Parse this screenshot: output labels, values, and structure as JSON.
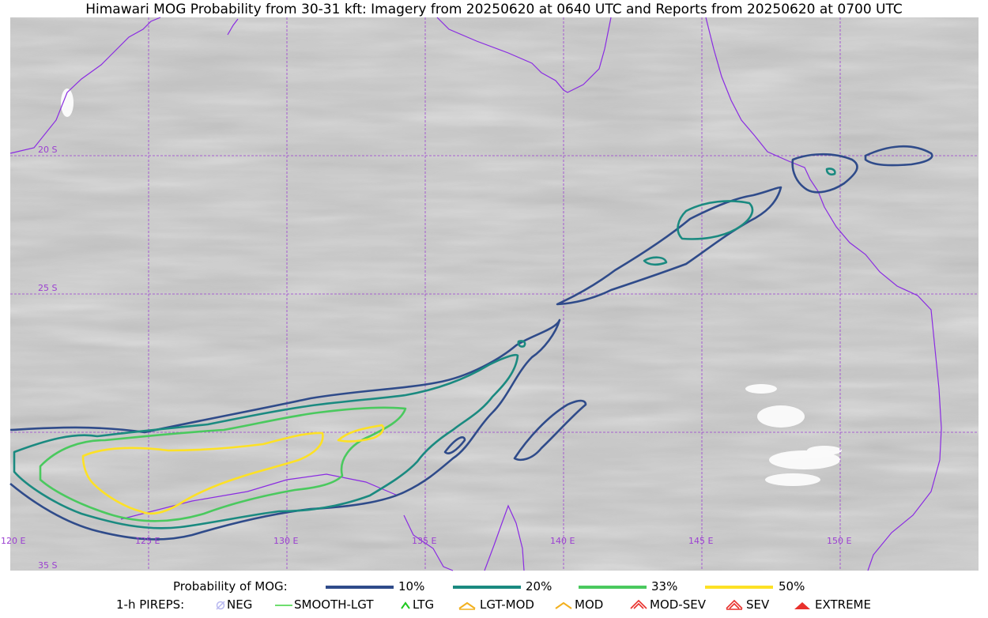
{
  "title": "Himawari MOG Probability from 30-31 kft: Imagery from 20250620 at 0640 UTC and Reports from 20250620 at 0700 UTC",
  "map": {
    "lon_labels": [
      "120 E",
      "125 E",
      "130 E",
      "135 E",
      "140 E",
      "145 E",
      "150 E"
    ],
    "lat_labels": [
      "20 S",
      "25 S",
      "35 S"
    ],
    "colors": {
      "grid": "#9b3fd1",
      "coast": "#8a2be2"
    }
  },
  "legend": {
    "prob_title": "Probability of MOG:",
    "levels": [
      {
        "label": "10%",
        "color": "#2f4b8a"
      },
      {
        "label": "20%",
        "color": "#1a8a80"
      },
      {
        "label": "33%",
        "color": "#4ac95e"
      },
      {
        "label": "50%",
        "color": "#fde125"
      }
    ],
    "pirep_title": "1-h PIREPS:",
    "pireps": [
      {
        "label": "NEG",
        "icon": "neg-icon",
        "color": "#b8b8f0"
      },
      {
        "label": "SMOOTH-LGT",
        "icon": "smooth-lgt-icon",
        "color": "#3fd43f"
      },
      {
        "label": "LTG",
        "icon": "ltg-icon",
        "color": "#1ec81e"
      },
      {
        "label": "LGT-MOD",
        "icon": "lgt-mod-icon",
        "color": "#f2b01e"
      },
      {
        "label": "MOD",
        "icon": "mod-icon",
        "color": "#f2b01e"
      },
      {
        "label": "MOD-SEV",
        "icon": "mod-sev-icon",
        "color": "#e8302c"
      },
      {
        "label": "SEV",
        "icon": "sev-icon",
        "color": "#e8302c"
      },
      {
        "label": "EXTREME",
        "icon": "extreme-icon",
        "color": "#e8302c"
      }
    ]
  }
}
